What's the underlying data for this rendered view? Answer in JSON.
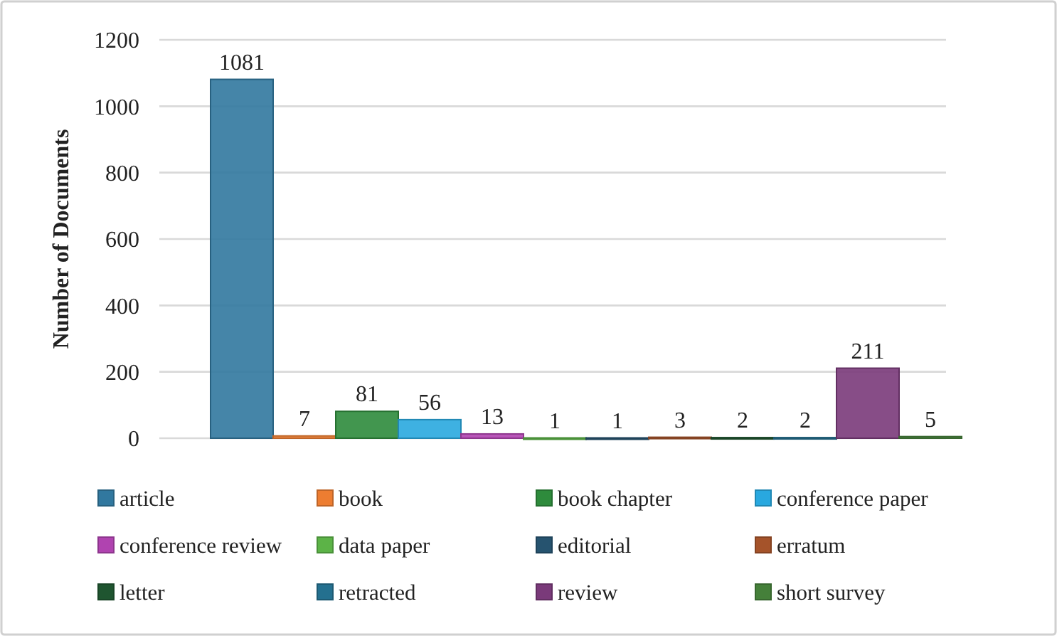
{
  "chart_data": {
    "type": "bar",
    "ylabel": "Number of Documents",
    "categories": [
      null
    ],
    "series": [
      {
        "name": "article",
        "color": "#31789f",
        "values": [
          1081
        ]
      },
      {
        "name": "book",
        "color": "#ed7d31",
        "values": [
          7
        ]
      },
      {
        "name": "book chapter",
        "color": "#2e8b3c",
        "values": [
          81
        ]
      },
      {
        "name": "conference paper",
        "color": "#29a8df",
        "values": [
          56
        ]
      },
      {
        "name": "conference review",
        "color": "#b043b0",
        "values": [
          13
        ]
      },
      {
        "name": "data paper",
        "color": "#5cb347",
        "values": [
          1
        ]
      },
      {
        "name": "editorial",
        "color": "#26536f",
        "values": [
          1
        ]
      },
      {
        "name": "erratum",
        "color": "#a5532a",
        "values": [
          3
        ]
      },
      {
        "name": "letter",
        "color": "#1f5530",
        "values": [
          2
        ]
      },
      {
        "name": "retracted",
        "color": "#24708f",
        "values": [
          2
        ]
      },
      {
        "name": "review",
        "color": "#7a3a7a",
        "values": [
          211
        ]
      },
      {
        "name": "short survey",
        "color": "#45803a",
        "values": [
          5
        ]
      }
    ],
    "ylim": [
      0,
      1200
    ],
    "yticks": [
      0,
      200,
      400,
      600,
      800,
      1000,
      1200
    ],
    "grid": "y",
    "legend": "bottom",
    "data_labels": true
  }
}
